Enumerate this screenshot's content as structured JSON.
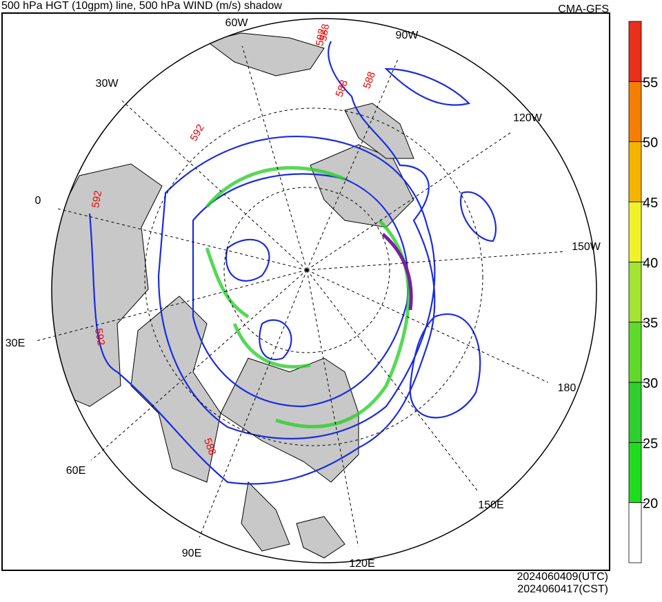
{
  "header": {
    "title": "500 hPa HGT (10gpm) line, 500 hPa WIND (m/s) shadow",
    "source": "CMA-GFS"
  },
  "map": {
    "longitude_labels": [
      "60W",
      "90W",
      "30W",
      "120W",
      "0",
      "150W",
      "30E",
      "180",
      "60E",
      "150E",
      "90E",
      "120E"
    ],
    "contour_labels": [
      "592",
      "592",
      "592",
      "592",
      "588",
      "588",
      "588",
      "588"
    ]
  },
  "colorbar": {
    "lim": [
      15,
      60
    ],
    "ticks": [
      20,
      25,
      30,
      35,
      40,
      45,
      50,
      55
    ],
    "colors": [
      "#ffffff",
      "#1fdc1f",
      "#2dcf2d",
      "#5fd92a",
      "#a3e332",
      "#f2f22a",
      "#f5b400",
      "#f57f00",
      "#e8301a"
    ]
  },
  "footer": {
    "timestamps": [
      "2024060409(UTC)",
      "2024060417(CST)"
    ]
  }
}
